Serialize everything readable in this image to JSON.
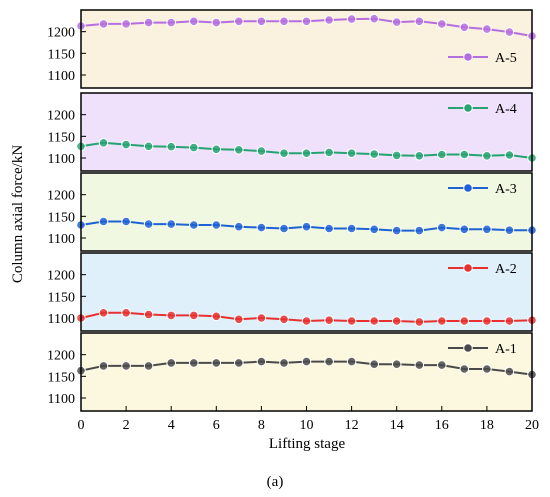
{
  "chart_data": {
    "type": "line",
    "ylabel": "Column axial force/kN",
    "xlabel": "Lifting stage",
    "caption": "(a)",
    "x": [
      0,
      1,
      2,
      3,
      4,
      5,
      6,
      7,
      8,
      9,
      10,
      11,
      12,
      13,
      14,
      15,
      16,
      17,
      18,
      19,
      20
    ],
    "xlim": [
      0,
      20
    ],
    "x_ticks": [
      "0",
      "2",
      "4",
      "6",
      "8",
      "10",
      "12",
      "14",
      "16",
      "18",
      "20"
    ],
    "panels": [
      {
        "name": "A-5",
        "bg": "#fbf1df",
        "color": "#b56ee0",
        "ylim": [
          1070,
          1250
        ],
        "y_ticks": [
          "1100",
          "1150",
          "1200"
        ],
        "legend_position": "middle-right",
        "values": [
          1213,
          1218,
          1218,
          1221,
          1221,
          1224,
          1221,
          1224,
          1224,
          1224,
          1224,
          1227,
          1229,
          1230,
          1222,
          1224,
          1218,
          1210,
          1206,
          1199,
          1190
        ]
      },
      {
        "name": "A-4",
        "bg": "#efe1fb",
        "color": "#27a372",
        "ylim": [
          1070,
          1250
        ],
        "y_ticks": [
          "1100",
          "1150",
          "1200"
        ],
        "legend_position": "top-right",
        "values": [
          1127,
          1135,
          1131,
          1127,
          1126,
          1124,
          1120,
          1119,
          1116,
          1111,
          1111,
          1113,
          1111,
          1109,
          1106,
          1105,
          1108,
          1108,
          1105,
          1107,
          1100
        ]
      },
      {
        "name": "A-3",
        "bg": "#f0f8e2",
        "color": "#1f62d6",
        "ylim": [
          1070,
          1250
        ],
        "y_ticks": [
          "1100",
          "1150",
          "1200"
        ],
        "legend_position": "top-right",
        "values": [
          1130,
          1138,
          1138,
          1132,
          1132,
          1130,
          1130,
          1126,
          1124,
          1122,
          1126,
          1122,
          1122,
          1120,
          1117,
          1117,
          1124,
          1120,
          1120,
          1118,
          1118
        ]
      },
      {
        "name": "A-2",
        "bg": "#dff0fb",
        "color": "#e8302f",
        "ylim": [
          1070,
          1250
        ],
        "y_ticks": [
          "1100",
          "1150",
          "1200"
        ],
        "legend_position": "top-right",
        "values": [
          1100,
          1112,
          1112,
          1108,
          1106,
          1106,
          1104,
          1097,
          1100,
          1097,
          1093,
          1095,
          1093,
          1093,
          1093,
          1091,
          1093,
          1093,
          1093,
          1093,
          1095
        ]
      },
      {
        "name": "A-1",
        "bg": "#fbf8df",
        "color": "#4a4a4a",
        "ylim": [
          1070,
          1250
        ],
        "y_ticks": [
          "1100",
          "1150",
          "1200"
        ],
        "legend_position": "top-right",
        "values": [
          1163,
          1174,
          1174,
          1174,
          1181,
          1181,
          1181,
          1181,
          1184,
          1181,
          1184,
          1184,
          1184,
          1178,
          1178,
          1176,
          1176,
          1167,
          1167,
          1161,
          1154
        ]
      }
    ]
  }
}
